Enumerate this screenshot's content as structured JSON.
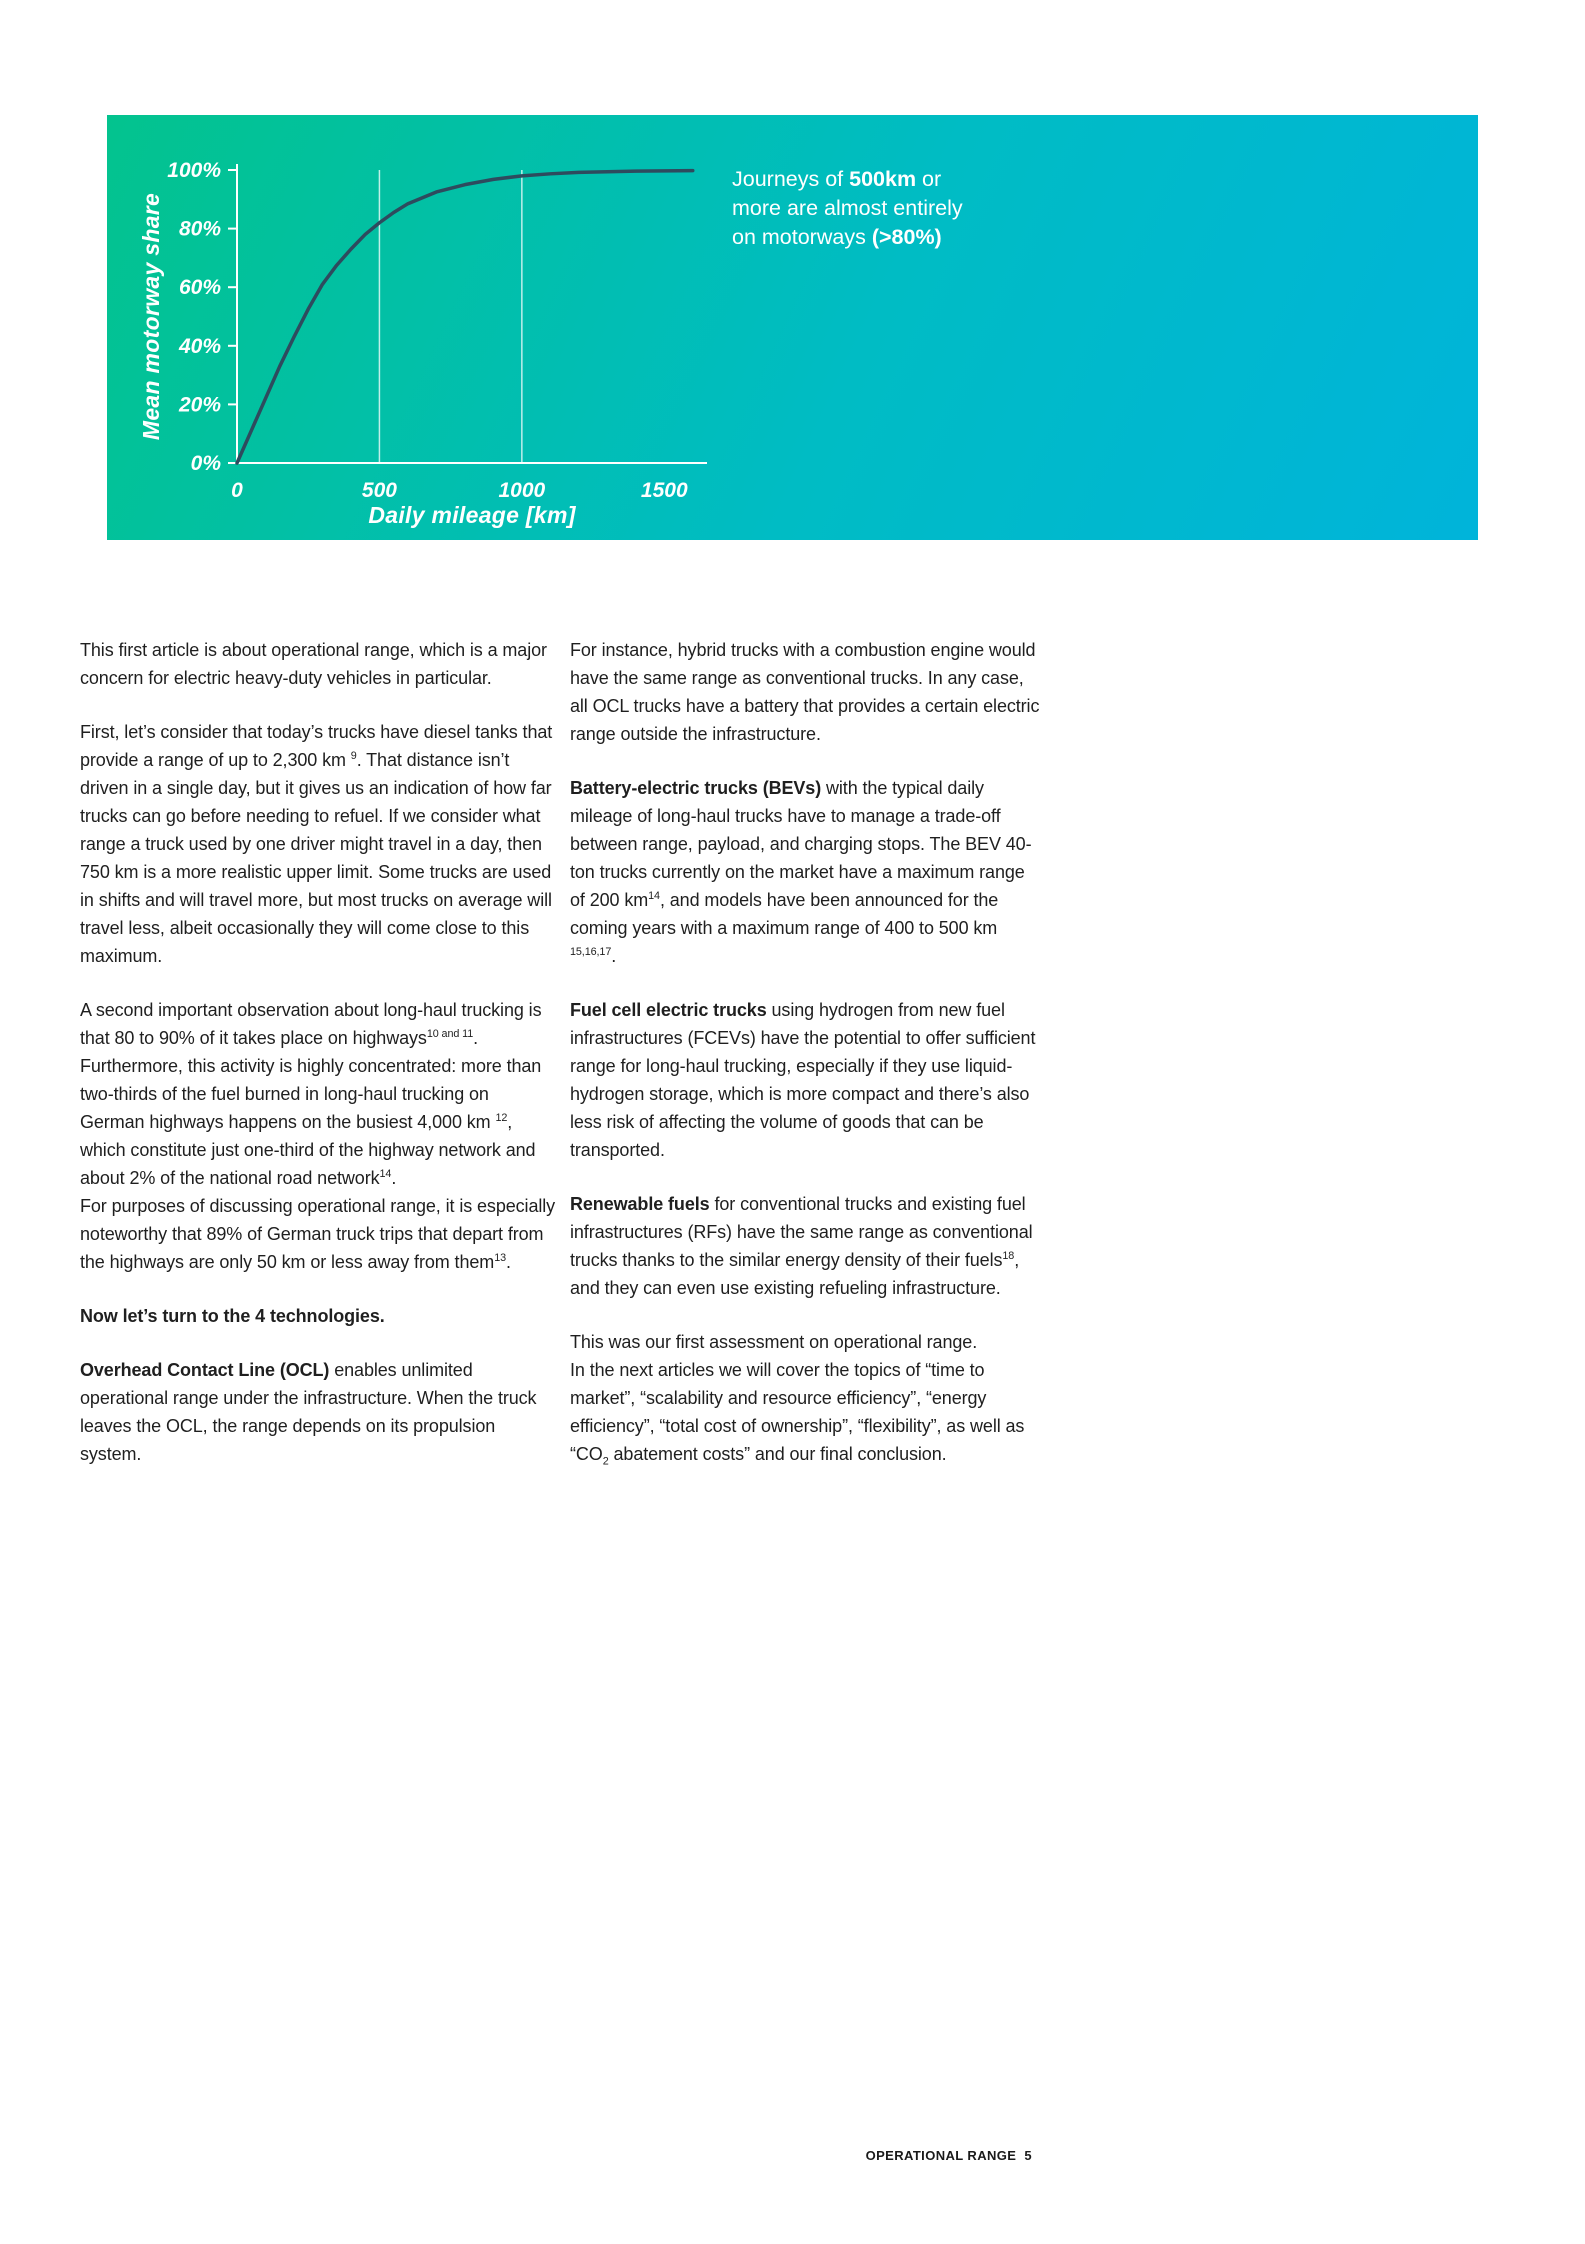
{
  "chart_data": {
    "type": "line",
    "title": "",
    "xlabel": "Daily mileage [km]",
    "ylabel": "Mean motorway share",
    "x": [
      0,
      50,
      100,
      150,
      200,
      250,
      300,
      350,
      400,
      450,
      500,
      550,
      600,
      700,
      800,
      900,
      1000,
      1100,
      1200,
      1300,
      1400,
      1500,
      1600
    ],
    "y": [
      0,
      11,
      22,
      33,
      43,
      52.5,
      61,
      67.5,
      73,
      78,
      82,
      85.5,
      88.5,
      92.5,
      95,
      96.8,
      98,
      98.7,
      99.2,
      99.4,
      99.6,
      99.7,
      99.8
    ],
    "xticks": [
      0,
      500,
      1000,
      1500
    ],
    "yticks": [
      "0%",
      "20%",
      "40%",
      "60%",
      "80%",
      "100%"
    ],
    "xlim": [
      0,
      1650
    ],
    "ylim": [
      0,
      100
    ],
    "gridlines_x": [
      500,
      1000
    ],
    "grid": "vertical-only",
    "legend": "none",
    "annotation_text": "Journeys of 500km or more are almost entirely on motorways (>80%)",
    "colors": {
      "background_gradient_start": "#03C38E",
      "background_gradient_end": "#00B4DA",
      "line": "#2E4B5E",
      "axis": "#FFFFFF",
      "label_text": "#FFFFFF"
    }
  },
  "chart": {
    "annotation": [
      {
        "t": "Journeys of "
      },
      {
        "t": "500km",
        "b": true
      },
      {
        "t": " or more are almost entirely on motorways "
      },
      {
        "t": "(>80%)",
        "b": true
      }
    ]
  },
  "article": {
    "left": [
      [
        {
          "t": "This first article is about operational range, which is a major concern for electric heavy-duty vehicles in particular."
        }
      ],
      [
        {
          "t": "First, let’s consider that today’s trucks have diesel tanks that provide a range of up to 2,300 km "
        },
        {
          "t": "9",
          "sup": true
        },
        {
          "t": ". That distance isn’t driven in a single day, but it gives us an indication of how far trucks can go before needing to refuel. If we consider what range a truck used by one driver might travel in a day, then 750 km is a more realistic upper limit. Some trucks are used in shifts and will travel more, but most trucks on average will travel less, albeit occasionally they will come close to this maximum."
        }
      ],
      [
        {
          "t": "A second important observation about long-haul trucking is that 80 to 90% of it takes place on highways"
        },
        {
          "t": "10 and 11",
          "sup": true
        },
        {
          "t": ". Furthermore, this activity is highly concentrated: more than two-thirds of the fuel burned in long-haul trucking on German highways happens on the busiest 4,000 km "
        },
        {
          "t": "12",
          "sup": true
        },
        {
          "t": ", which constitute just one-third of the highway network and about 2% of the national road network"
        },
        {
          "t": "14",
          "sup": true
        },
        {
          "t": "."
        },
        {
          "br": true
        },
        {
          "t": "For purposes of discussing operational range, it is especially noteworthy that 89% of German truck trips that depart from the highways are only 50 km or less away from them"
        },
        {
          "t": "13",
          "sup": true
        },
        {
          "t": "."
        }
      ],
      [
        {
          "t": "Now let’s turn to the 4 technologies.",
          "b": true
        }
      ],
      [
        {
          "t": "Overhead Contact Line (OCL)",
          "b": true
        },
        {
          "t": " enables unlimited operational range under the infrastructure. When the truck leaves the OCL, the range depends on its propulsion system."
        }
      ]
    ],
    "right": [
      [
        {
          "t": "For instance, hybrid trucks with a combustion engine would have the same range as conventional trucks. In any case, all OCL trucks have a battery that provides a certain electric range outside the infrastructure."
        }
      ],
      [
        {
          "t": "Battery-electric trucks (BEVs)",
          "b": true
        },
        {
          "t": " with the typical daily mileage of long-haul trucks have to manage a trade-off between range, payload, and charging stops. The BEV 40-ton trucks currently on the market have a maximum range of 200 km"
        },
        {
          "t": "14",
          "sup": true
        },
        {
          "t": ", and models have been announced for the coming years with a maximum range of 400 to 500 km "
        },
        {
          "t": "15,16,17",
          "sup": true
        },
        {
          "t": "."
        }
      ],
      [
        {
          "t": "Fuel cell electric trucks",
          "b": true
        },
        {
          "t": " using hydrogen from new fuel infrastructures (FCEVs) have the potential to offer sufficient range for long-haul trucking, especially if they use liquid-hydrogen storage, which is more compact and there’s also less risk of affecting the volume of goods that can be transported."
        }
      ],
      [
        {
          "t": "Renewable fuels",
          "b": true
        },
        {
          "t": " for conventional trucks and existing fuel infrastructures (RFs) have the same range as conventional trucks thanks to the similar energy density of their fuels"
        },
        {
          "t": "18",
          "sup": true
        },
        {
          "t": ", and they can even use existing refueling infrastructure."
        }
      ],
      [
        {
          "t": "This was our first assessment on operational range."
        },
        {
          "br": true
        },
        {
          "t": "In the next articles we will cover the topics of “time to market”, “scalability and resource efficiency”, “energy efficiency”, “total cost of ownership”, “flexibility”, as well as “CO"
        },
        {
          "t": "2",
          "sub": true
        },
        {
          "t": " abatement costs” and our final conclusion."
        }
      ]
    ]
  },
  "footer": {
    "label": "OPERATIONAL RANGE",
    "page_number": "5"
  }
}
